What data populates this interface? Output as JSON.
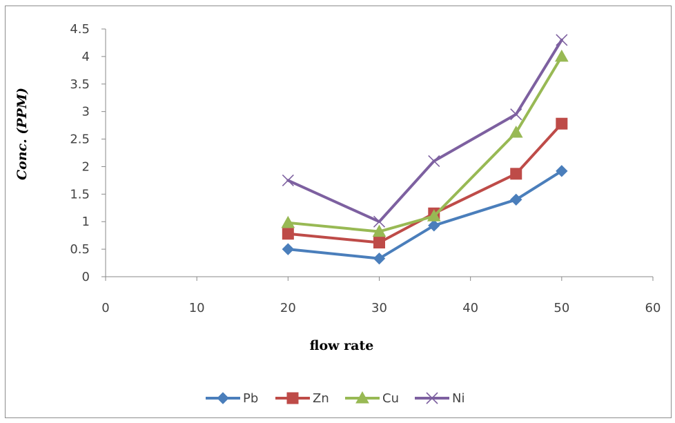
{
  "chart_data": {
    "type": "line",
    "xlabel": "flow rate",
    "ylabel": "Conc. (PPM)",
    "xlim": [
      0,
      60
    ],
    "ylim": [
      0,
      4.5
    ],
    "xticks": [
      "0",
      "10",
      "20",
      "30",
      "40",
      "50",
      "60"
    ],
    "yticks": [
      "0",
      "0.5",
      "1",
      "1.5",
      "2",
      "2.5",
      "3",
      "3.5",
      "4",
      "4.5"
    ],
    "x": [
      20,
      30,
      36,
      45,
      50
    ],
    "grid": false,
    "legend_position": "bottom",
    "series": [
      {
        "name": "Pb",
        "color": "#4a7ebb",
        "marker": "diamond",
        "values": [
          0.5,
          0.33,
          0.93,
          1.4,
          1.92
        ]
      },
      {
        "name": "Zn",
        "color": "#be4b48",
        "marker": "square",
        "values": [
          0.78,
          0.62,
          1.15,
          1.87,
          2.78
        ]
      },
      {
        "name": "Cu",
        "color": "#98b954",
        "marker": "triangle",
        "values": [
          0.98,
          0.82,
          1.1,
          2.62,
          4.0
        ]
      },
      {
        "name": "Ni",
        "color": "#7d60a0",
        "marker": "x",
        "values": [
          1.75,
          1.0,
          2.1,
          2.95,
          4.3
        ]
      }
    ]
  }
}
